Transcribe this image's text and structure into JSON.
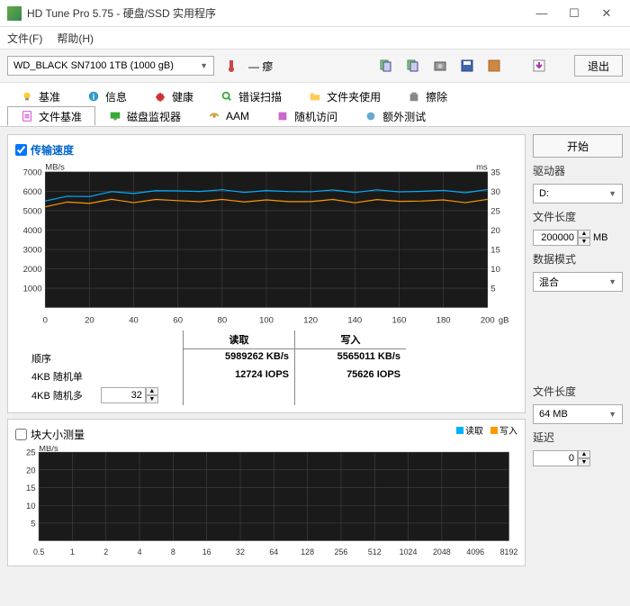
{
  "window": {
    "title": "HD Tune Pro 5.75 - 硬盘/SSD 实用程序"
  },
  "menu": {
    "file": "文件(F)",
    "help": "帮助(H)"
  },
  "toolbar": {
    "drive_selected": "WD_BLACK SN7100 1TB (1000 gB)",
    "exit_label": "退出"
  },
  "tabs": {
    "row1": [
      {
        "label": "基准",
        "icon": "bulb"
      },
      {
        "label": "信息",
        "icon": "info"
      },
      {
        "label": "健康",
        "icon": "health"
      },
      {
        "label": "错误扫描",
        "icon": "scan"
      },
      {
        "label": "文件夹使用",
        "icon": "folder"
      },
      {
        "label": "擦除",
        "icon": "erase"
      }
    ],
    "row2": [
      {
        "label": "文件基准",
        "icon": "filebench",
        "active": true
      },
      {
        "label": "磁盘监视器",
        "icon": "monitor"
      },
      {
        "label": "AAM",
        "icon": "aam"
      },
      {
        "label": "随机访问",
        "icon": "random"
      },
      {
        "label": "额外测试",
        "icon": "extra"
      }
    ]
  },
  "chart1": {
    "checkbox_checked": true,
    "checkbox_label": "传输速度",
    "y_label": "MB/s",
    "y_max": 7000,
    "y_step": 1000,
    "y2_label": "ms",
    "y2_max": 35,
    "y2_step": 5,
    "x_max": 200,
    "x_step": 20,
    "x_unit": "gB",
    "bg": "#1a1a1a",
    "grid": "#444444",
    "read_color": "#00b0ff",
    "write_color": "#ff9800",
    "x_ticks": [
      0,
      20,
      40,
      60,
      80,
      100,
      120,
      140,
      160,
      180,
      200
    ],
    "y_ticks": [
      1000,
      2000,
      3000,
      4000,
      5000,
      6000,
      7000
    ],
    "y2_ticks": [
      5,
      10,
      15,
      20,
      25,
      30,
      35
    ],
    "read_series": [
      5500,
      5700,
      5800,
      5900,
      5950,
      6000,
      6000,
      6050,
      6000,
      6020,
      5980,
      6000,
      6010,
      6000,
      6020,
      6000,
      6010,
      6000,
      6000,
      6000,
      6010
    ],
    "write_series": [
      5200,
      5400,
      5450,
      5500,
      5480,
      5550,
      5500,
      5520,
      5500,
      5530,
      5500,
      5480,
      5500,
      5510,
      5490,
      5500,
      5520,
      5500,
      5510,
      5490,
      5500
    ]
  },
  "stats": {
    "headers": {
      "read": "读取",
      "write": "写入"
    },
    "rows": [
      {
        "label": "顺序",
        "read": "5989262 KB/s",
        "write": "5565011 KB/s"
      },
      {
        "label": "4KB 随机单",
        "read": "12724 IOPS",
        "write": "75626 IOPS"
      },
      {
        "label": "4KB 随机多",
        "spinner": "32"
      }
    ]
  },
  "chart2": {
    "checkbox_checked": false,
    "checkbox_label": "块大小测量",
    "y_label": "MB/s",
    "y_ticks": [
      5,
      10,
      15,
      20,
      25
    ],
    "x_ticks": [
      "0.5",
      "1",
      "2",
      "4",
      "8",
      "16",
      "32",
      "64",
      "128",
      "256",
      "512",
      "1024",
      "2048",
      "4096",
      "8192"
    ],
    "bg": "#1a1a1a",
    "grid": "#444444",
    "legend_read": "读取",
    "legend_write": "写入",
    "read_color": "#00b0ff",
    "write_color": "#ff9800"
  },
  "side": {
    "start_label": "开始",
    "driver_label": "驱动器",
    "driver_value": "D:",
    "filelen_label": "文件长度",
    "filelen_value": "200000",
    "filelen_unit": "MB",
    "datamode_label": "数据模式",
    "datamode_value": "混合",
    "filelen2_label": "文件长度",
    "filelen2_value": "64 MB",
    "delay_label": "延迟",
    "delay_value": "0"
  }
}
